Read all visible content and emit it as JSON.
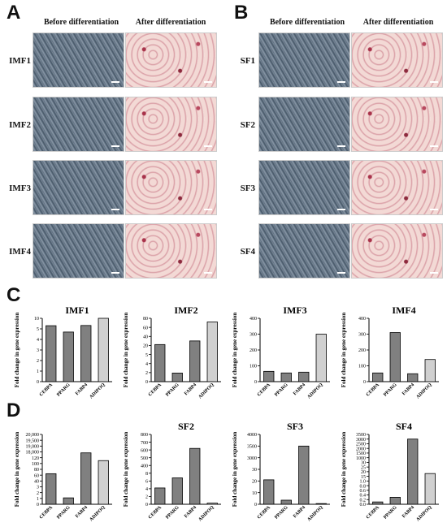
{
  "panels": {
    "A": "A",
    "B": "B",
    "C": "C",
    "D": "D"
  },
  "columns": {
    "before": "Before differentiation",
    "after": "After differentiation"
  },
  "rows_A": [
    "IMF1",
    "IMF2",
    "IMF3",
    "IMF4"
  ],
  "rows_B": [
    "SF1",
    "SF2",
    "SF3",
    "SF4"
  ],
  "ylabel": "Fold change in gene expression",
  "chart_data": [
    {
      "type": "bar",
      "title": "IMF1",
      "categories": [
        "CEBPA",
        "PPARG",
        "FABP4",
        "ADIPOQ"
      ],
      "values": [
        6.5,
        4.7,
        6.6,
        12.5
      ],
      "colors": [
        "#808080",
        "#808080",
        "#808080",
        "#d0d0d0"
      ]
    },
    {
      "type": "bar",
      "title": "IMF2",
      "categories": [
        "CEBPA",
        "PPARG",
        "FABP4",
        "ADIPOQ"
      ],
      "values": [
        22,
        1.9,
        30,
        72
      ],
      "colors": [
        "#808080",
        "#808080",
        "#808080",
        "#d0d0d0"
      ]
    },
    {
      "type": "bar",
      "title": "IMF3",
      "categories": [
        "CEBPA",
        "PPARG",
        "FABP4",
        "ADIPOQ"
      ],
      "values": [
        65,
        55,
        60,
        300
      ],
      "colors": [
        "#808080",
        "#808080",
        "#808080",
        "#d0d0d0"
      ]
    },
    {
      "type": "bar",
      "title": "IMF4",
      "categories": [
        "CEBPA",
        "PPARG",
        "FABP4",
        "ADIPOQ"
      ],
      "values": [
        55,
        310,
        50,
        140
      ],
      "colors": [
        "#808080",
        "#808080",
        "#808080",
        "#d0d0d0"
      ]
    },
    {
      "type": "bar",
      "title": "",
      "categories": [
        "CEBPA",
        "PPARG",
        "FABP4",
        "ADIPOQ"
      ],
      "values": [
        65,
        1.1,
        15000,
        110
      ],
      "colors": [
        "#808080",
        "#808080",
        "#808080",
        "#d0d0d0"
      ]
    },
    {
      "type": "bar",
      "title": "SF2",
      "categories": [
        "CEBPA",
        "PPARG",
        "FABP4",
        "ADIPOQ"
      ],
      "values": [
        4.2,
        6.8,
        620,
        0.3
      ],
      "colors": [
        "#808080",
        "#808080",
        "#808080",
        "#d0d0d0"
      ]
    },
    {
      "type": "bar",
      "title": "SF3",
      "categories": [
        "CEBPA",
        "PPARG",
        "FABP4",
        "ADIPOQ"
      ],
      "values": [
        21,
        3.5,
        3500,
        0.6
      ],
      "colors": [
        "#808080",
        "#808080",
        "#808080",
        "#d0d0d0"
      ]
    },
    {
      "type": "bar",
      "title": "SF4",
      "categories": [
        "CEBPA",
        "PPARG",
        "FABP4",
        "ADIPOQ"
      ],
      "values": [
        0.1,
        0.3,
        3000,
        18
      ],
      "colors": [
        "#808080",
        "#808080",
        "#808080",
        "#d0d0d0"
      ]
    }
  ],
  "ticks": [
    [
      "0",
      "1",
      "2",
      "3",
      "4",
      "5",
      "10"
    ],
    [
      "0",
      "2",
      "4",
      "5",
      "20",
      "40",
      "60",
      "80"
    ],
    [
      "0",
      "100",
      "200",
      "300",
      "400"
    ],
    [
      "0",
      "100",
      "200",
      "300",
      "400"
    ],
    [
      "0",
      "1",
      "2",
      "3",
      "40",
      "60",
      "80",
      "100",
      "120",
      "18,000",
      "19,000",
      "19,500",
      "20,000"
    ],
    [
      "0",
      "2",
      "4",
      "6",
      "8",
      "400",
      "500",
      "600",
      "700",
      "800"
    ],
    [
      "0",
      "10",
      "20",
      "30",
      "3000",
      "3500",
      "4000"
    ],
    [
      "0.0",
      "0.2",
      "0.4",
      "0.6",
      "0.8",
      "1.0",
      "15",
      "20",
      "25",
      "30",
      "1000",
      "1500",
      "2000",
      "2500",
      "3000",
      "3500"
    ]
  ]
}
